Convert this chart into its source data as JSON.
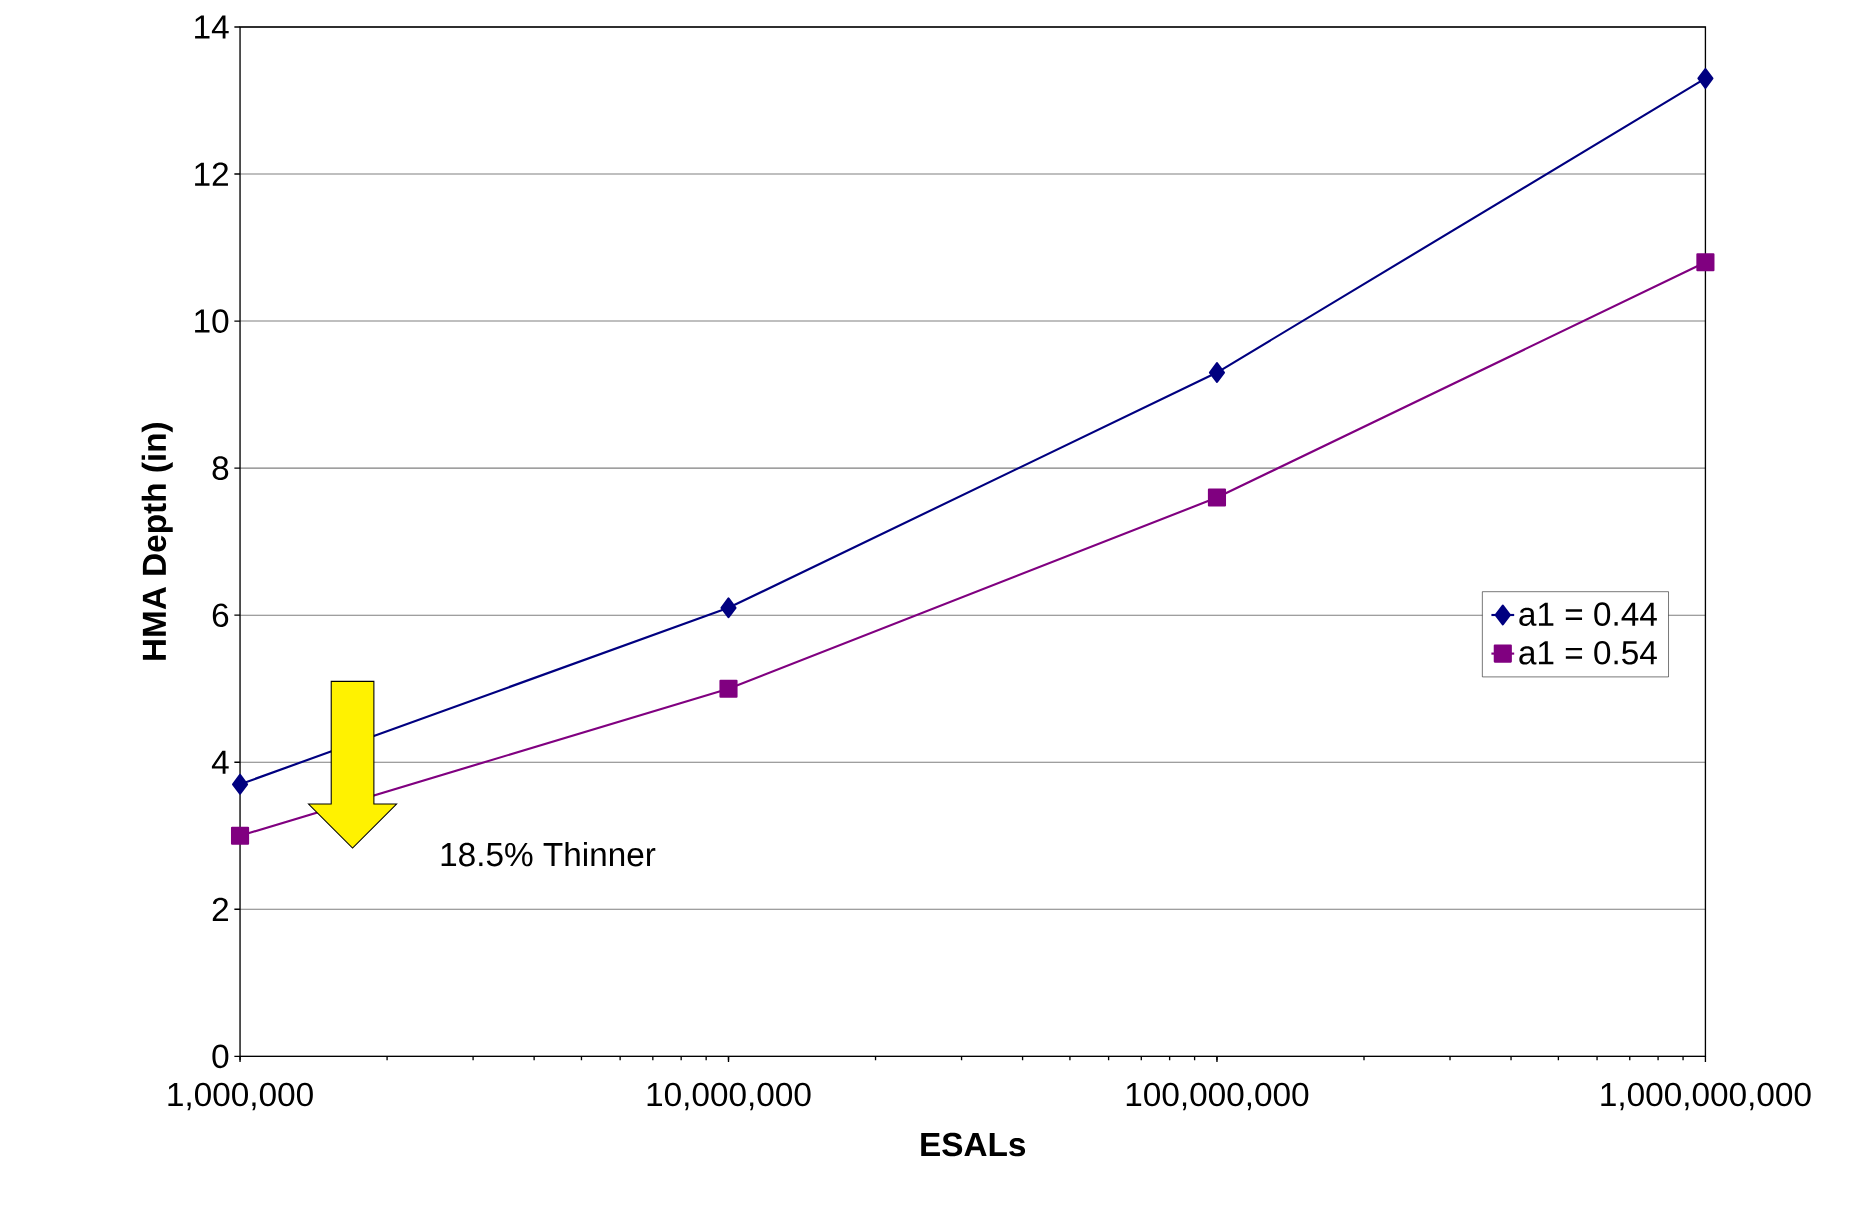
{
  "chart_data": {
    "type": "line",
    "xlabel": "ESALs",
    "ylabel": "HMA Depth (in)",
    "x": [
      1000000,
      10000000,
      100000000,
      1000000000
    ],
    "series": [
      {
        "name": "a1 = 0.44",
        "color": "#000080",
        "marker": "diamond",
        "values": [
          3.7,
          6.1,
          9.3,
          13.3
        ]
      },
      {
        "name": "a1 = 0.54",
        "color": "#800080",
        "marker": "square",
        "values": [
          3.0,
          5.0,
          7.6,
          10.8
        ]
      }
    ],
    "log": "x",
    "xlim": [
      1000000,
      1000000000
    ],
    "xticks": [
      {
        "value": 1000000,
        "label": "1,000,000"
      },
      {
        "value": 10000000,
        "label": "10,000,000"
      },
      {
        "value": 100000000,
        "label": "100,000,000"
      },
      {
        "value": 1000000000,
        "label": "1,000,000,000"
      }
    ],
    "ylim": [
      0,
      14
    ],
    "yticks": [
      0,
      2,
      4,
      6,
      8,
      10,
      12,
      14
    ],
    "grid": "y",
    "legend": "right",
    "line_style": "solid",
    "annotations": [
      "18.5% Thinner"
    ]
  }
}
